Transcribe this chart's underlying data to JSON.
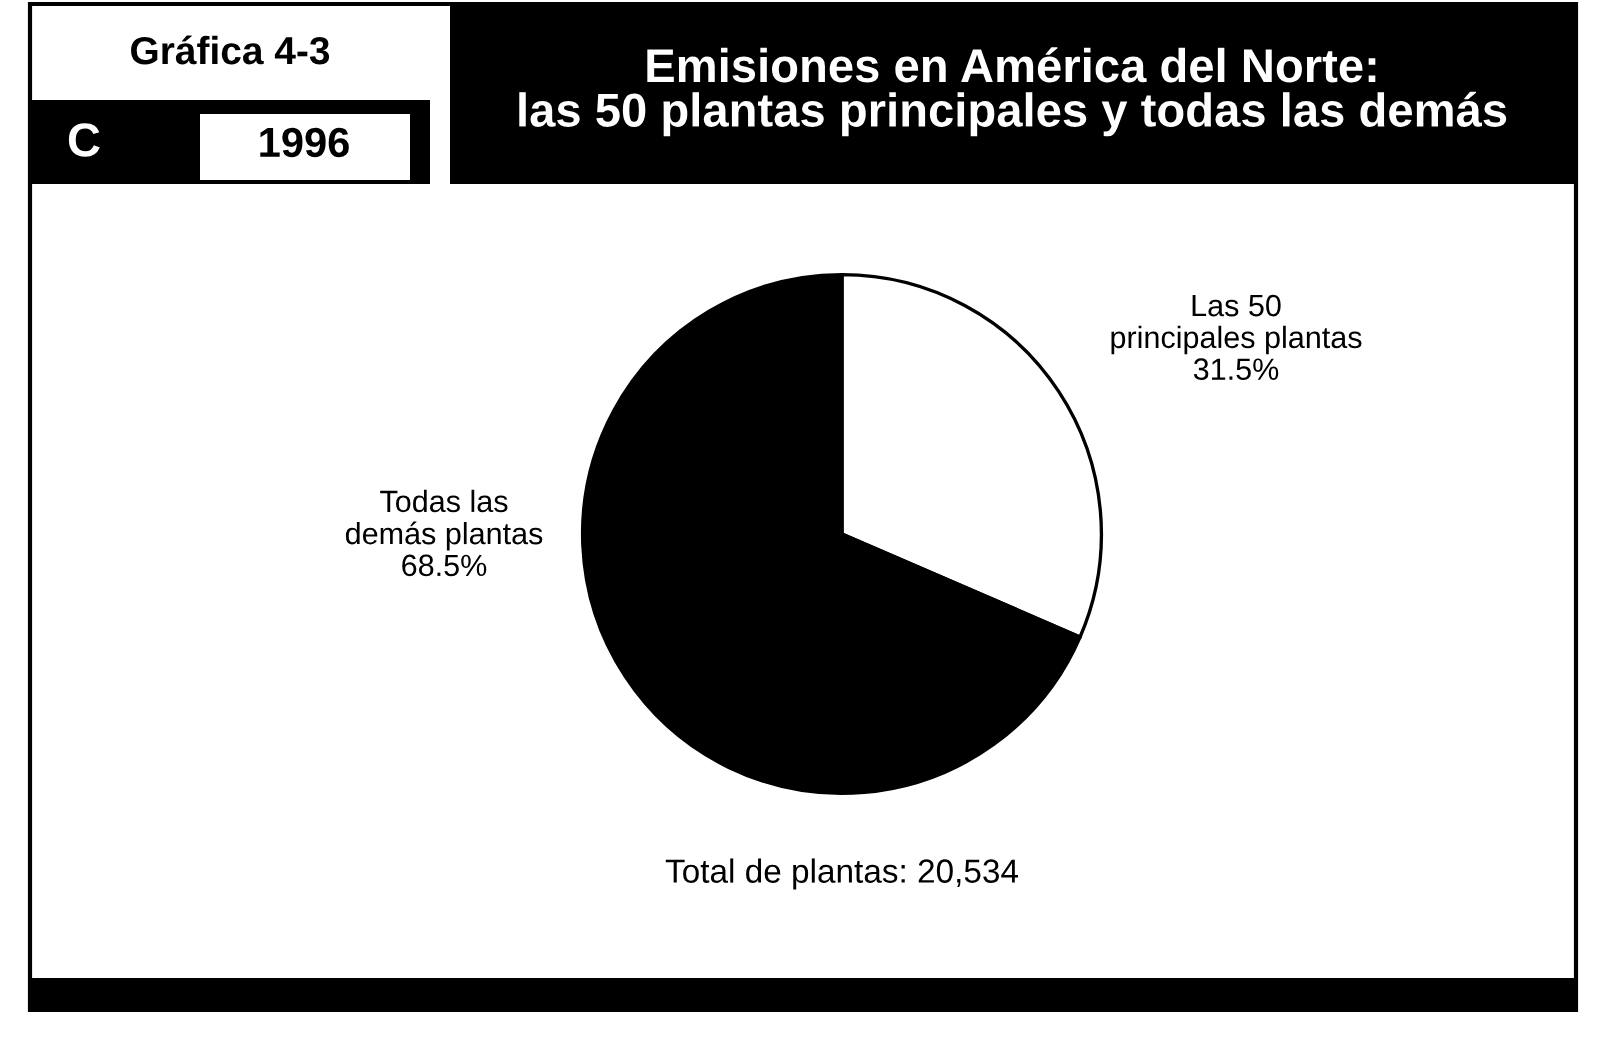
{
  "chart_data": {
    "type": "pie",
    "title": "Emisiones en América del Norte:\nlas 50 plantas principales y todas las demás",
    "categories": [
      "Las 50\nprincipales plantas",
      "Todas las\ndemás plantas"
    ],
    "values": [
      31.5,
      68.5
    ],
    "colors": [
      "#ffffff",
      "#000000"
    ],
    "value_labels": [
      "31.5%",
      "68.5%"
    ],
    "annotations": [
      "Gráfica 4-3",
      "C",
      "1996",
      "Total de plantas: 20,534"
    ]
  }
}
